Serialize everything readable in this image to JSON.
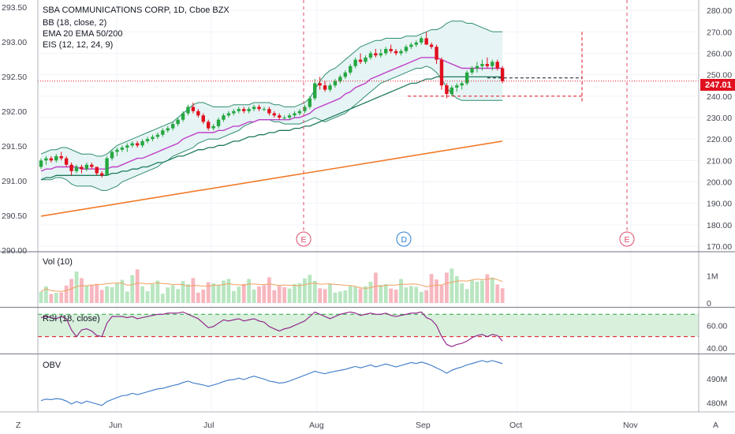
{
  "legend": {
    "title": "SBA COMMUNICATIONS CORP, 1D, Cboe BZX",
    "bb": "BB (18, close, 2)",
    "ema": "EMA 20 EMA 50/200",
    "eis": "EIS (12, 12, 24, 9)"
  },
  "panes": {
    "vol": "Vol (10)",
    "rsi": "RSI (18, close)",
    "obv": "OBV"
  },
  "corner": {
    "left": "Z",
    "right": "A"
  },
  "current_price": "247.01",
  "colors": {
    "up": "#26a641",
    "down": "#e0101e",
    "ema20": "#c040c8",
    "ema50": "#1f7a5c",
    "ema200": "#f07a28",
    "bb_fill": "#e6f4f5",
    "bb_line": "#2e8c6e",
    "rsi_line": "#8e1c85",
    "obv_line": "#3a78c8",
    "vol_up": "#b8e6c0",
    "vol_down": "#f7b7bf",
    "marker": "#e04a6a"
  },
  "chart_data": [
    {
      "type": "candlestick",
      "title": "SBA COMMUNICATIONS CORP, 1D, Cboe BZX",
      "left_axis_ticks": [
        "293.50",
        "293.00",
        "292.50",
        "292.00",
        "291.50",
        "291.00",
        "290.50",
        "290.00"
      ],
      "right_axis_ticks": [
        "280.00",
        "270.00",
        "260.00",
        "250.00",
        "240.00",
        "230.00",
        "220.00",
        "210.00",
        "200.00",
        "190.00",
        "180.00",
        "170.00"
      ],
      "ylim": [
        170,
        283
      ],
      "x_ticks": [
        "Jun",
        "Jul",
        "Aug",
        "Sep",
        "Oct",
        "Nov"
      ],
      "candles": [
        [
          207,
          211,
          206,
          210
        ],
        [
          210,
          212,
          208,
          211
        ],
        [
          211,
          212,
          209,
          210
        ],
        [
          210,
          213,
          209,
          212
        ],
        [
          212,
          214,
          210,
          211
        ],
        [
          211,
          212,
          207,
          208
        ],
        [
          208,
          209,
          203,
          205
        ],
        [
          205,
          208,
          204,
          207
        ],
        [
          207,
          208,
          204,
          206
        ],
        [
          206,
          209,
          205,
          208
        ],
        [
          208,
          209,
          206,
          207
        ],
        [
          207,
          207,
          203,
          204
        ],
        [
          204,
          205,
          202,
          203
        ],
        [
          203,
          212,
          203,
          211
        ],
        [
          211,
          215,
          210,
          214
        ],
        [
          214,
          216,
          212,
          215
        ],
        [
          215,
          217,
          214,
          216
        ],
        [
          216,
          218,
          214,
          217
        ],
        [
          217,
          219,
          216,
          218
        ],
        [
          218,
          219,
          216,
          217
        ],
        [
          217,
          220,
          216,
          219
        ],
        [
          219,
          221,
          218,
          220
        ],
        [
          220,
          222,
          219,
          221
        ],
        [
          221,
          223,
          220,
          222
        ],
        [
          222,
          225,
          221,
          224
        ],
        [
          224,
          226,
          223,
          225
        ],
        [
          225,
          228,
          224,
          227
        ],
        [
          227,
          230,
          226,
          229
        ],
        [
          229,
          233,
          228,
          232
        ],
        [
          232,
          236,
          231,
          235
        ],
        [
          235,
          237,
          232,
          233
        ],
        [
          233,
          234,
          230,
          231
        ],
        [
          231,
          232,
          227,
          228
        ],
        [
          228,
          229,
          224,
          225
        ],
        [
          225,
          227,
          224,
          226
        ],
        [
          226,
          230,
          225,
          229
        ],
        [
          229,
          232,
          228,
          231
        ],
        [
          231,
          233,
          230,
          232
        ],
        [
          232,
          234,
          231,
          233
        ],
        [
          233,
          235,
          232,
          234
        ],
        [
          234,
          235,
          232,
          233
        ],
        [
          233,
          235,
          232,
          234
        ],
        [
          234,
          236,
          233,
          235
        ],
        [
          235,
          236,
          233,
          234
        ],
        [
          234,
          235,
          233,
          234
        ],
        [
          234,
          235,
          231,
          232
        ],
        [
          232,
          233,
          230,
          231
        ],
        [
          231,
          232,
          229,
          230
        ],
        [
          230,
          231,
          229,
          230
        ],
        [
          230,
          232,
          229,
          231
        ],
        [
          231,
          233,
          230,
          232
        ],
        [
          232,
          234,
          231,
          233
        ],
        [
          233,
          236,
          232,
          235
        ],
        [
          235,
          240,
          234,
          239
        ],
        [
          239,
          248,
          238,
          246
        ],
        [
          246,
          249,
          243,
          245
        ],
        [
          245,
          247,
          242,
          243
        ],
        [
          243,
          246,
          242,
          245
        ],
        [
          245,
          248,
          244,
          247
        ],
        [
          247,
          250,
          246,
          249
        ],
        [
          249,
          252,
          248,
          251
        ],
        [
          251,
          255,
          250,
          254
        ],
        [
          254,
          258,
          253,
          257
        ],
        [
          257,
          260,
          255,
          256
        ],
        [
          256,
          259,
          255,
          258
        ],
        [
          258,
          261,
          257,
          260
        ],
        [
          260,
          262,
          258,
          259
        ],
        [
          259,
          262,
          258,
          260
        ],
        [
          260,
          263,
          259,
          262
        ],
        [
          262,
          264,
          260,
          261
        ],
        [
          261,
          262,
          259,
          260
        ],
        [
          260,
          262,
          259,
          261
        ],
        [
          261,
          264,
          260,
          263
        ],
        [
          263,
          265,
          262,
          264
        ],
        [
          264,
          266,
          263,
          265
        ],
        [
          265,
          268,
          264,
          267
        ],
        [
          267,
          270,
          265,
          264
        ],
        [
          264,
          265,
          262,
          263
        ],
        [
          263,
          264,
          255,
          257
        ],
        [
          257,
          258,
          243,
          245
        ],
        [
          245,
          246,
          239,
          241
        ],
        [
          241,
          245,
          240,
          244
        ],
        [
          244,
          246,
          242,
          245
        ],
        [
          245,
          247,
          243,
          246
        ],
        [
          246,
          252,
          245,
          251
        ],
        [
          251,
          254,
          250,
          253
        ],
        [
          253,
          256,
          251,
          254
        ],
        [
          254,
          257,
          252,
          255
        ],
        [
          255,
          258,
          253,
          254
        ],
        [
          254,
          257,
          252,
          256
        ],
        [
          256,
          257,
          252,
          253
        ],
        [
          253,
          254,
          246,
          247.01
        ]
      ],
      "bb_upper": [
        213,
        214,
        215,
        215,
        216,
        216,
        215,
        214,
        213,
        213,
        213,
        212,
        212,
        213,
        215,
        217,
        218,
        219,
        220,
        221,
        222,
        223,
        224,
        225,
        226,
        227,
        228,
        230,
        232,
        234,
        236,
        237,
        237,
        236,
        235,
        235,
        235,
        235,
        236,
        236,
        236,
        236,
        237,
        237,
        237,
        237,
        236,
        236,
        235,
        235,
        235,
        236,
        237,
        239,
        243,
        247,
        250,
        252,
        253,
        255,
        257,
        259,
        261,
        263,
        264,
        265,
        266,
        266,
        267,
        267,
        267,
        267,
        268,
        268,
        268,
        269,
        270,
        271,
        271,
        272,
        274,
        275,
        275,
        275,
        274,
        274,
        273,
        272,
        271,
        270,
        270,
        270
      ],
      "bb_lower": [
        201,
        201,
        201,
        202,
        202,
        201,
        199,
        198,
        198,
        198,
        198,
        197,
        196,
        196,
        197,
        198,
        200,
        201,
        202,
        203,
        204,
        205,
        206,
        207,
        209,
        210,
        212,
        213,
        214,
        215,
        216,
        218,
        219,
        220,
        220,
        220,
        221,
        222,
        223,
        224,
        226,
        227,
        228,
        229,
        229,
        229,
        228,
        228,
        227,
        227,
        227,
        227,
        228,
        229,
        230,
        229,
        228,
        229,
        230,
        231,
        232,
        234,
        236,
        238,
        240,
        242,
        244,
        246,
        247,
        248,
        249,
        250,
        251,
        252,
        253,
        253,
        254,
        253,
        251,
        248,
        244,
        241,
        239,
        238,
        238,
        238,
        238,
        238,
        238,
        238,
        238,
        238
      ],
      "ema20": [
        205,
        206,
        206,
        207,
        207,
        207,
        207,
        207,
        206,
        206,
        206,
        206,
        206,
        206,
        207,
        207,
        208,
        209,
        210,
        211,
        211,
        212,
        213,
        214,
        215,
        216,
        217,
        218,
        220,
        221,
        222,
        223,
        223,
        223,
        223,
        224,
        224,
        225,
        226,
        226,
        227,
        228,
        228,
        229,
        229,
        229,
        229,
        229,
        229,
        229,
        230,
        230,
        231,
        232,
        234,
        235,
        236,
        237,
        238,
        239,
        241,
        242,
        244,
        245,
        246,
        248,
        249,
        250,
        251,
        252,
        253,
        254,
        255,
        256,
        257,
        258,
        258,
        258,
        258,
        257,
        256,
        255,
        254,
        253,
        253,
        253,
        253,
        253,
        253,
        253,
        253,
        253
      ],
      "ema50": [
        201,
        202,
        202,
        203,
        203,
        203,
        203,
        203,
        203,
        203,
        203,
        203,
        203,
        203,
        204,
        204,
        205,
        205,
        206,
        206,
        207,
        207,
        208,
        209,
        209,
        210,
        211,
        212,
        212,
        213,
        214,
        215,
        215,
        216,
        216,
        217,
        217,
        218,
        219,
        219,
        220,
        221,
        221,
        222,
        222,
        223,
        223,
        224,
        224,
        224,
        225,
        225,
        226,
        226,
        227,
        228,
        229,
        230,
        231,
        232,
        233,
        234,
        235,
        236,
        237,
        238,
        239,
        240,
        241,
        242,
        243,
        244,
        245,
        246,
        246,
        247,
        248,
        248,
        249,
        249,
        249,
        249,
        249,
        249,
        249,
        249,
        249,
        249,
        249,
        249,
        249,
        249
      ],
      "ema200_start": 184,
      "ema200_end": 219,
      "events": [
        {
          "label": "E",
          "position": "late-jul"
        },
        {
          "label": "D",
          "position": "late-aug"
        },
        {
          "label": "E",
          "position": "late-oct"
        }
      ]
    },
    {
      "type": "bar",
      "title": "Vol (10)",
      "y_ticks": [
        "1M",
        "0"
      ],
      "ylim": [
        0,
        1500000
      ],
      "values": [
        420000,
        610000,
        330000,
        370000,
        390000,
        640000,
        880000,
        1150000,
        910000,
        620000,
        660000,
        700000,
        480000,
        610000,
        580000,
        720000,
        850000,
        420000,
        1020000,
        1230000,
        610000,
        430000,
        690000,
        820000,
        340000,
        570000,
        650000,
        510000,
        800000,
        690000,
        910000,
        380000,
        490000,
        760000,
        720000,
        660000,
        820000,
        880000,
        440000,
        600000,
        700000,
        880000,
        490000,
        610000,
        650000,
        940000,
        470000,
        630000,
        580000,
        530000,
        690000,
        720000,
        900000,
        1030000,
        810000,
        540000,
        510000,
        700000,
        380000,
        420000,
        460000,
        620000,
        590000,
        530000,
        610000,
        780000,
        1110000,
        660000,
        690000,
        530000,
        490000,
        880000,
        570000,
        620000,
        590000,
        410000,
        470000,
        1060000,
        860000,
        650000,
        1110000,
        1260000,
        980000,
        720000,
        510000,
        830000,
        780000,
        820000,
        1050000,
        930000,
        680000,
        540000
      ],
      "up": [
        true,
        true,
        false,
        true,
        false,
        false,
        false,
        true,
        false,
        true,
        false,
        false,
        false,
        true,
        true,
        true,
        true,
        true,
        true,
        false,
        true,
        true,
        true,
        true,
        true,
        true,
        true,
        true,
        true,
        true,
        false,
        false,
        false,
        false,
        true,
        true,
        true,
        true,
        true,
        true,
        false,
        true,
        true,
        false,
        false,
        false,
        false,
        false,
        false,
        true,
        true,
        true,
        true,
        true,
        true,
        false,
        false,
        true,
        true,
        true,
        true,
        true,
        true,
        false,
        true,
        true,
        false,
        true,
        true,
        false,
        false,
        true,
        true,
        true,
        true,
        true,
        false,
        false,
        false,
        false,
        false,
        true,
        true,
        true,
        true,
        true,
        true,
        true,
        false,
        true,
        false,
        false
      ]
    },
    {
      "type": "line",
      "title": "RSI (18, close)",
      "y_ticks": [
        "60.00",
        "40.00"
      ],
      "ylim": [
        37,
        73
      ],
      "band": [
        50,
        70
      ],
      "values": [
        67,
        68,
        67,
        66,
        68,
        66,
        56,
        50,
        56,
        57,
        55,
        51,
        50,
        62,
        68,
        68,
        68,
        67,
        68,
        66,
        67,
        68,
        69,
        70,
        70,
        71,
        71,
        71,
        72,
        70,
        68,
        66,
        62,
        58,
        59,
        62,
        65,
        64,
        65,
        66,
        64,
        65,
        66,
        64,
        63,
        59,
        57,
        55,
        57,
        58,
        60,
        62,
        64,
        68,
        72,
        70,
        68,
        66,
        68,
        70,
        71,
        72,
        71,
        69,
        70,
        71,
        70,
        70,
        71,
        69,
        68,
        69,
        70,
        71,
        71,
        72,
        67,
        65,
        60,
        50,
        43,
        41,
        43,
        44,
        46,
        49,
        51,
        52,
        50,
        52,
        51,
        46
      ]
    },
    {
      "type": "line",
      "title": "OBV",
      "y_ticks": [
        "490M",
        "480M"
      ],
      "ylim": [
        477,
        499
      ],
      "values": [
        481,
        481.6,
        481.4,
        481.8,
        481.6,
        480.8,
        479.6,
        480.6,
        479.8,
        480.8,
        480.2,
        479.6,
        479,
        480.6,
        481.4,
        482.2,
        483,
        483.2,
        484,
        483.4,
        484,
        484.6,
        485.2,
        485.8,
        486,
        486.6,
        487.2,
        487.6,
        488.4,
        489,
        488.2,
        487.8,
        487.4,
        486.8,
        487.4,
        488,
        488.8,
        489.4,
        489.6,
        490.2,
        489.6,
        490.4,
        491,
        490.4,
        489.8,
        489,
        488.6,
        488.2,
        488.4,
        489,
        489.8,
        490.6,
        491.4,
        492.2,
        493,
        492.4,
        492,
        492.6,
        493,
        493.4,
        493.8,
        494.4,
        495,
        494.4,
        495,
        495.6,
        494.8,
        495.4,
        496,
        495.4,
        494.8,
        495.4,
        496,
        496.6,
        496.2,
        496.8,
        496.2,
        495.4,
        494.4,
        493.4,
        492.2,
        493.4,
        494.2,
        494.8,
        495.6,
        496.2,
        496.8,
        497.4,
        496.8,
        497.4,
        496.8,
        496.2
      ]
    }
  ]
}
